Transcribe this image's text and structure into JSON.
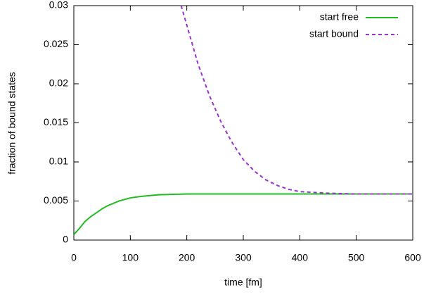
{
  "chart_data": {
    "type": "line",
    "xlabel": "time [fm]",
    "ylabel": "fraction of bound states",
    "xlim": [
      0,
      600
    ],
    "xticks": [
      0,
      100,
      200,
      300,
      400,
      500,
      600
    ],
    "ylim": [
      0,
      0.03
    ],
    "yticks": [
      0,
      0.005,
      0.01,
      0.015,
      0.02,
      0.025,
      0.03
    ],
    "grid": false,
    "legend": "top-right",
    "series": [
      {
        "name": "start free",
        "color": "#22bb22",
        "dash": false,
        "x": [
          0,
          10,
          20,
          30,
          40,
          50,
          60,
          80,
          100,
          120,
          150,
          200,
          250,
          300,
          350,
          400,
          450,
          500,
          550,
          600
        ],
        "values": [
          0.0007,
          0.0015,
          0.0024,
          0.003,
          0.0035,
          0.004,
          0.0044,
          0.005,
          0.0054,
          0.0056,
          0.0058,
          0.0059,
          0.0059,
          0.0059,
          0.0059,
          0.0059,
          0.0059,
          0.0059,
          0.0059,
          0.0059
        ]
      },
      {
        "name": "start bound",
        "color": "#9933cc",
        "dash": true,
        "x": [
          190,
          200,
          220,
          240,
          260,
          280,
          300,
          320,
          340,
          360,
          380,
          400,
          450,
          500,
          550,
          600
        ],
        "values": [
          0.03,
          0.0275,
          0.0225,
          0.0185,
          0.0152,
          0.0125,
          0.0103,
          0.0088,
          0.0077,
          0.007,
          0.0065,
          0.0062,
          0.006,
          0.0059,
          0.0059,
          0.0059
        ]
      }
    ]
  }
}
